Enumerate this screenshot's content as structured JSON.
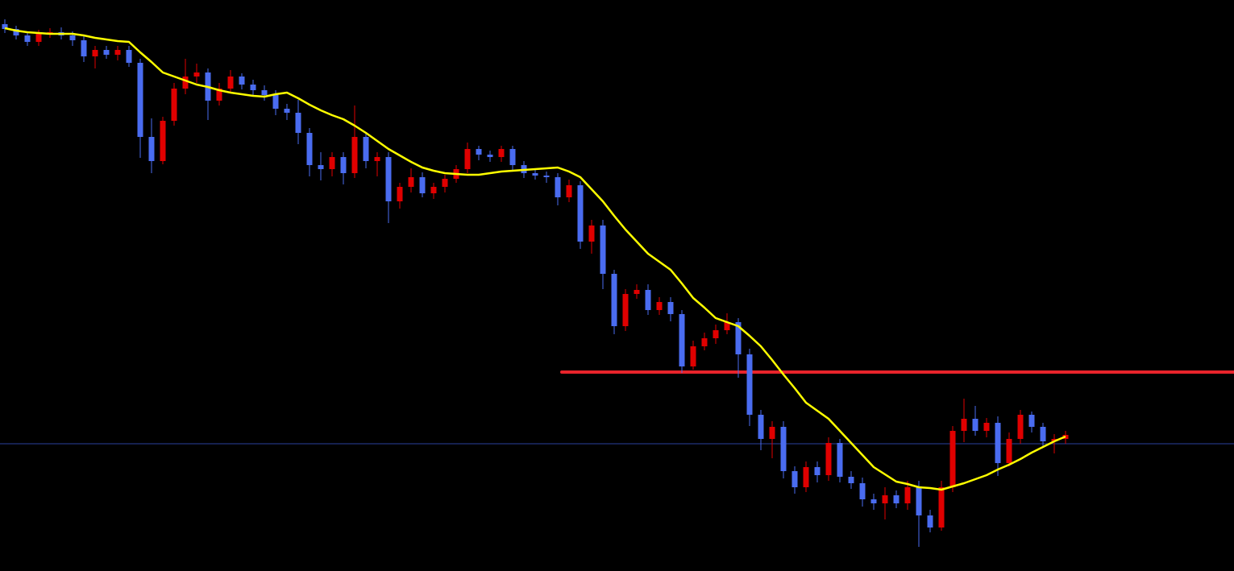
{
  "chart_data": {
    "type": "candlestick",
    "ylim": [
      0,
      709
    ],
    "up_color": "#e00000",
    "down_color": "#4a6cf0",
    "open": [
      679,
      673,
      665,
      657,
      667,
      669,
      665,
      659,
      639,
      647,
      641,
      647,
      631,
      539,
      509,
      559,
      599,
      614,
      619,
      584,
      599,
      614,
      604,
      597,
      591,
      574,
      569,
      544,
      504,
      499,
      514,
      494,
      539,
      509,
      514,
      459,
      477,
      489,
      469,
      477,
      487,
      499,
      524,
      517,
      514,
      524,
      504,
      494,
      491,
      489,
      464,
      479,
      409,
      429,
      369,
      304,
      344,
      349,
      324,
      334,
      319,
      254,
      279,
      289,
      299,
      309,
      269,
      194,
      164,
      179,
      124,
      104,
      129,
      119,
      159,
      117,
      109,
      89,
      84,
      94,
      84,
      104,
      69,
      54,
      104,
      174,
      189,
      174,
      184,
      134,
      164,
      194,
      179,
      161,
      164
    ],
    "high": [
      685,
      677,
      670,
      672,
      674,
      675,
      670,
      664,
      652,
      652,
      652,
      652,
      636,
      562,
      564,
      606,
      636,
      630,
      624,
      606,
      622,
      618,
      610,
      603,
      597,
      580,
      585,
      550,
      520,
      520,
      520,
      578,
      545,
      520,
      520,
      482,
      500,
      495,
      482,
      492,
      504,
      532,
      528,
      522,
      528,
      528,
      509,
      499,
      496,
      494,
      486,
      484,
      436,
      436,
      374,
      350,
      356,
      356,
      340,
      340,
      324,
      286,
      296,
      306,
      320,
      314,
      276,
      200,
      186,
      186,
      130,
      136,
      136,
      166,
      164,
      124,
      116,
      96,
      104,
      100,
      112,
      112,
      76,
      112,
      180,
      214,
      205,
      190,
      192,
      172,
      200,
      198,
      184,
      170,
      174
    ],
    "low": [
      668,
      660,
      652,
      652,
      662,
      660,
      652,
      632,
      624,
      636,
      634,
      626,
      513,
      494,
      505,
      553,
      592,
      606,
      560,
      578,
      594,
      598,
      590,
      584,
      566,
      560,
      530,
      490,
      485,
      490,
      480,
      488,
      500,
      490,
      432,
      450,
      470,
      464,
      462,
      470,
      482,
      494,
      510,
      508,
      508,
      498,
      488,
      486,
      482,
      454,
      458,
      400,
      394,
      350,
      294,
      298,
      338,
      318,
      318,
      310,
      246,
      250,
      274,
      282,
      294,
      240,
      180,
      150,
      140,
      115,
      96,
      98,
      110,
      112,
      110,
      102,
      80,
      76,
      64,
      78,
      76,
      30,
      48,
      50,
      98,
      160,
      168,
      166,
      118,
      130,
      158,
      172,
      155,
      146,
      158
    ],
    "close": [
      673,
      665,
      657,
      667,
      669,
      665,
      659,
      639,
      647,
      641,
      647,
      631,
      539,
      509,
      559,
      599,
      614,
      619,
      584,
      599,
      614,
      604,
      597,
      591,
      574,
      569,
      544,
      504,
      499,
      514,
      494,
      539,
      509,
      514,
      459,
      477,
      489,
      469,
      477,
      487,
      499,
      524,
      517,
      514,
      524,
      504,
      494,
      491,
      489,
      464,
      479,
      409,
      429,
      369,
      304,
      344,
      349,
      324,
      334,
      319,
      254,
      279,
      289,
      299,
      309,
      269,
      194,
      164,
      179,
      124,
      104,
      129,
      119,
      159,
      117,
      109,
      89,
      84,
      94,
      84,
      104,
      69,
      54,
      104,
      174,
      189,
      174,
      184,
      134,
      164,
      194,
      179,
      161,
      164,
      169
    ],
    "moving_average": {
      "color": "#ffff00",
      "values": [
        674,
        671,
        669,
        668,
        667,
        667,
        667,
        665,
        662,
        660,
        658,
        657,
        644,
        632,
        619,
        614,
        609,
        604,
        601,
        597,
        594,
        592,
        590,
        589,
        592,
        594,
        587,
        579,
        572,
        566,
        561,
        553,
        544,
        534,
        524,
        516,
        508,
        501,
        497,
        494,
        493,
        492,
        492,
        494,
        496,
        497,
        498,
        499,
        500,
        501,
        496,
        489,
        474,
        459,
        441,
        424,
        409,
        394,
        384,
        374,
        357,
        339,
        327,
        314,
        309,
        304,
        292,
        279,
        262,
        244,
        227,
        209,
        199,
        189,
        174,
        159,
        144,
        129,
        120,
        111,
        108,
        104,
        103,
        101,
        105,
        109,
        114,
        119,
        126,
        132,
        139,
        147,
        154,
        161,
        167
      ]
    },
    "hlines": [
      {
        "value": 247,
        "color": "#e8242b"
      },
      {
        "value": 158,
        "color": "#2a3f9e"
      }
    ]
  }
}
